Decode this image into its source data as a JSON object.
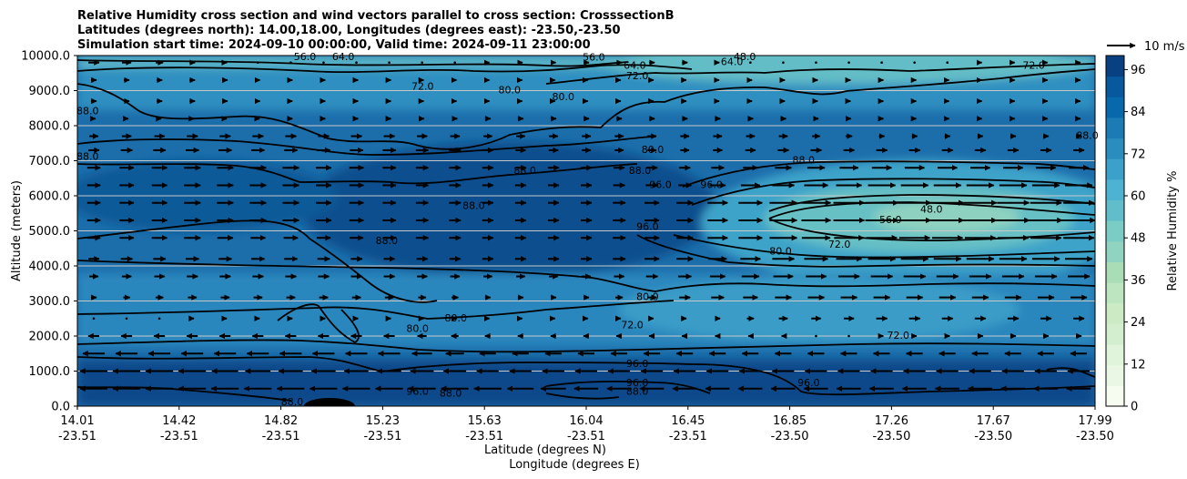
{
  "chart_data": {
    "type": "heatmap",
    "title_lines": [
      "Relative Humidity cross section and wind vectors parallel to cross section: CrosssectionB",
      "Latitudes (degrees north): 14.00,18.00, Longitudes (degrees east): -23.50,-23.50",
      "Simulation start time: 2024-09-10 00:00:00, Valid time: 2024-09-11 23:00:00"
    ],
    "xlabel_lines": [
      "Latitude (degrees N)",
      "Longitude (degrees E)"
    ],
    "ylabel": "Altitude (meters)",
    "xlim": [
      14.01,
      17.99
    ],
    "ylim": [
      0,
      10000
    ],
    "x_ticks": [
      {
        "lat": "14.01",
        "lon": "-23.51"
      },
      {
        "lat": "14.42",
        "lon": "-23.51"
      },
      {
        "lat": "14.82",
        "lon": "-23.51"
      },
      {
        "lat": "15.23",
        "lon": "-23.51"
      },
      {
        "lat": "15.63",
        "lon": "-23.51"
      },
      {
        "lat": "16.04",
        "lon": "-23.51"
      },
      {
        "lat": "16.45",
        "lon": "-23.51"
      },
      {
        "lat": "16.85",
        "lon": "-23.50"
      },
      {
        "lat": "17.26",
        "lon": "-23.50"
      },
      {
        "lat": "17.67",
        "lon": "-23.50"
      },
      {
        "lat": "17.99",
        "lon": "-23.50"
      }
    ],
    "y_ticks": [
      "0.0",
      "1000.0",
      "2000.0",
      "3000.0",
      "4000.0",
      "5000.0",
      "6000.0",
      "7000.0",
      "8000.0",
      "9000.0",
      "10000.0"
    ],
    "y_tick_values": [
      0,
      1000,
      2000,
      3000,
      4000,
      5000,
      6000,
      7000,
      8000,
      9000,
      10000
    ],
    "grid": "horizontal",
    "colorbar": {
      "label": "Relative Humidity %",
      "min": 0,
      "max": 100,
      "tick_labels": [
        "0",
        "12",
        "24",
        "36",
        "48",
        "60",
        "72",
        "84",
        "96"
      ],
      "tick_values": [
        0,
        12,
        24,
        36,
        48,
        60,
        72,
        84,
        96
      ],
      "colors": [
        "#f7fcf0",
        "#eaf7e4",
        "#e0f3db",
        "#d3eece",
        "#ccebc5",
        "#bde5bf",
        "#a8ddb5",
        "#8fd3c0",
        "#7bccc4",
        "#62bdcb",
        "#4eb3d3",
        "#3ba1ca",
        "#2b8cbe",
        "#1c7bb4",
        "#0868ac",
        "#08589e",
        "#084081"
      ]
    },
    "wind_reference": {
      "label": "10 m/s",
      "speed": 10
    },
    "contour_labels": [
      {
        "text": "56.0",
        "x": 14.9,
        "y": 9950
      },
      {
        "text": "64.0",
        "x": 15.05,
        "y": 9950
      },
      {
        "text": "56.0",
        "x": 16.03,
        "y": 9930
      },
      {
        "text": "64.0",
        "x": 16.19,
        "y": 9700
      },
      {
        "text": "72.0",
        "x": 16.2,
        "y": 9400
      },
      {
        "text": "64.0",
        "x": 16.57,
        "y": 9800
      },
      {
        "text": "48.0",
        "x": 16.62,
        "y": 9950
      },
      {
        "text": "72.0",
        "x": 17.75,
        "y": 9700
      },
      {
        "text": "72.0",
        "x": 15.36,
        "y": 9100
      },
      {
        "text": "80.0",
        "x": 15.7,
        "y": 9000
      },
      {
        "text": "80.0",
        "x": 15.91,
        "y": 8800
      },
      {
        "text": "88.0",
        "x": 14.05,
        "y": 8400
      },
      {
        "text": "88.0",
        "x": 14.05,
        "y": 7100
      },
      {
        "text": "80.0",
        "x": 16.26,
        "y": 7300
      },
      {
        "text": "88.0",
        "x": 16.21,
        "y": 6700
      },
      {
        "text": "88.0",
        "x": 15.76,
        "y": 6700
      },
      {
        "text": "96.0",
        "x": 16.29,
        "y": 6300
      },
      {
        "text": "96.0",
        "x": 16.49,
        "y": 6300
      },
      {
        "text": "88.0",
        "x": 16.85,
        "y": 7000
      },
      {
        "text": "88.0",
        "x": 17.96,
        "y": 7700
      },
      {
        "text": "88.0",
        "x": 15.56,
        "y": 5700
      },
      {
        "text": "96.0",
        "x": 16.24,
        "y": 5100
      },
      {
        "text": "56.0",
        "x": 17.19,
        "y": 5300
      },
      {
        "text": "48.0",
        "x": 17.35,
        "y": 5600
      },
      {
        "text": "88.0",
        "x": 15.22,
        "y": 4700
      },
      {
        "text": "72.0",
        "x": 16.99,
        "y": 4600
      },
      {
        "text": "80.0",
        "x": 16.76,
        "y": 4400
      },
      {
        "text": "80.0",
        "x": 16.24,
        "y": 3100
      },
      {
        "text": "80.0",
        "x": 15.49,
        "y": 2500
      },
      {
        "text": "72.0",
        "x": 16.18,
        "y": 2300
      },
      {
        "text": "80.0",
        "x": 15.34,
        "y": 2200
      },
      {
        "text": "72.0",
        "x": 17.22,
        "y": 2000
      },
      {
        "text": "96.0",
        "x": 16.2,
        "y": 1200
      },
      {
        "text": "96.0",
        "x": 16.2,
        "y": 650
      },
      {
        "text": "88.0",
        "x": 16.2,
        "y": 400
      },
      {
        "text": "96.0",
        "x": 16.87,
        "y": 650
      },
      {
        "text": "96.0",
        "x": 15.34,
        "y": 400
      },
      {
        "text": "88.0",
        "x": 15.47,
        "y": 350
      },
      {
        "text": "88.0",
        "x": 14.85,
        "y": 100
      }
    ],
    "wind_rows": [
      {
        "z": 9800,
        "u": [
          1,
          0.5,
          0,
          0,
          0.3,
          0.5,
          0.5,
          0,
          0,
          0.3,
          0.3
        ]
      },
      {
        "z": 9300,
        "u": [
          0.5,
          0.5,
          0.3,
          0.3,
          0.3,
          0.3,
          0.3,
          0.3,
          0.3,
          0.3,
          0.3
        ]
      },
      {
        "z": 8700,
        "u": [
          0.5,
          0.5,
          0.3,
          0.3,
          0.3,
          0.3,
          0.3,
          0.3,
          0.3,
          0.3,
          0.3
        ]
      },
      {
        "z": 8200,
        "u": [
          0.3,
          0.3,
          0.3,
          0.3,
          0.5,
          0.5,
          0.5,
          0.5,
          0.3,
          0.3,
          0.3
        ]
      },
      {
        "z": 7700,
        "u": [
          0.8,
          1,
          1,
          1,
          0.8,
          0.8,
          0.8,
          0.8,
          0.5,
          0.5,
          0.5
        ]
      },
      {
        "z": 7300,
        "u": [
          1,
          1.2,
          1.2,
          1.2,
          1,
          0.8,
          0.8,
          1,
          1,
          1,
          1
        ]
      },
      {
        "z": 6800,
        "u": [
          1.2,
          1.5,
          1.5,
          1.2,
          1,
          1,
          1,
          1.5,
          1.8,
          1.8,
          1.8
        ]
      },
      {
        "z": 6300,
        "u": [
          1.2,
          1.5,
          1.5,
          1.2,
          1,
          1,
          1.2,
          2,
          2.5,
          2.5,
          2.5
        ]
      },
      {
        "z": 5800,
        "u": [
          1.2,
          1.5,
          1.5,
          1.2,
          1,
          1,
          1.5,
          2.5,
          3,
          3,
          2.8
        ]
      },
      {
        "z": 5300,
        "u": [
          1.2,
          1.5,
          1.5,
          1.2,
          1,
          1,
          1.5,
          2.5,
          3,
          3,
          3
        ]
      },
      {
        "z": 4800,
        "u": [
          1.2,
          1.5,
          1.3,
          1.2,
          1,
          1,
          1.5,
          2.5,
          2.8,
          2.8,
          2.8
        ]
      },
      {
        "z": 4200,
        "u": [
          1,
          1.2,
          1.2,
          1,
          1,
          1,
          1.5,
          2,
          2.5,
          2.5,
          2.5
        ]
      },
      {
        "z": 3700,
        "u": [
          0.8,
          1,
          1,
          1,
          0.8,
          0.8,
          1.2,
          1.8,
          2,
          2,
          2
        ]
      },
      {
        "z": 3100,
        "u": [
          0.5,
          0.8,
          0.8,
          0.8,
          0.5,
          0.5,
          1,
          1.5,
          1.5,
          1.5,
          1.5
        ]
      },
      {
        "z": 2500,
        "u": [
          0,
          0.3,
          0.3,
          0.3,
          0.3,
          0.3,
          0.3,
          0.8,
          1,
          1,
          1
        ]
      },
      {
        "z": 2000,
        "u": [
          -1,
          -1,
          -1,
          -1,
          -0.5,
          -0.5,
          -0.5,
          -0.3,
          0.3,
          0.5,
          0.5
        ]
      },
      {
        "z": 1500,
        "u": [
          -2,
          -2,
          -2,
          -2,
          -1.5,
          -1.5,
          -1.5,
          -1.5,
          -1.5,
          -1.5,
          -1.5
        ]
      },
      {
        "z": 1000,
        "u": [
          -2.5,
          -2.5,
          -2.2,
          -2.2,
          -2,
          -2,
          -2,
          -2,
          -2,
          -2,
          -2
        ]
      },
      {
        "z": 500,
        "u": [
          -2.5,
          -2.5,
          -2.5,
          -2.5,
          -2.5,
          -2.2,
          -2.2,
          -2.2,
          -2.2,
          -2.2,
          -2.2
        ]
      }
    ]
  }
}
